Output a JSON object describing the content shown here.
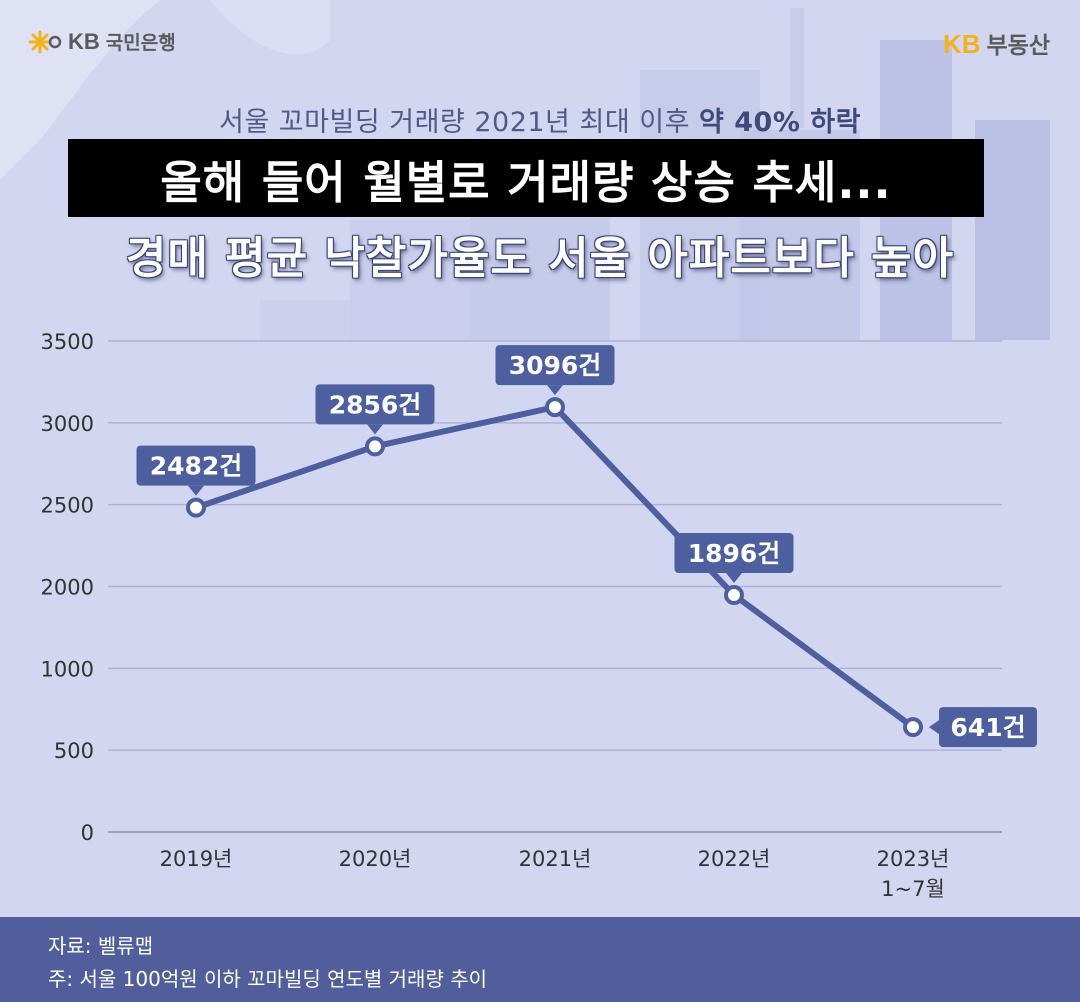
{
  "brand": {
    "left_mark": "KB",
    "left_name": "국민은행",
    "right_mark": "KB",
    "right_name": "부동산"
  },
  "header": {
    "subtitle_plain": "서울 꼬마빌딩 거래량 2021년 최대 이후 ",
    "subtitle_emph": "약 40% 하락",
    "title_line1": "올해 들어 월별로 거래량 상승 추세...",
    "title_line2_plain": "경매 평균 낙찰가율도 ",
    "title_line2_emph": "서울 아파트보다 높아"
  },
  "colors": {
    "line": "#4e5f9f",
    "label_bg": "#4e5f9f",
    "footer_bg": "#525e9c",
    "background": "#d3d6f0",
    "accent": "#f3b21b"
  },
  "chart_data": {
    "type": "line",
    "categories": [
      "2019년",
      "2020년",
      "2021년",
      "2022년",
      "2023년\n1~7월"
    ],
    "values": [
      2482,
      2856,
      3096,
      1896,
      641
    ],
    "data_labels": [
      "2482건",
      "2856건",
      "3096건",
      "1896건",
      "641건"
    ],
    "y_ticks": [
      0,
      500,
      1000,
      2000,
      2500,
      3000,
      3500
    ],
    "y_tick_labels": [
      "0",
      "500",
      "1000",
      "2000",
      "2500",
      "3000",
      "3500"
    ],
    "grid": true
  },
  "footer": {
    "source": "자료: 벨류맵",
    "note": "주: 서울 100억원 이하 꼬마빌딩 연도별 거래량 추이"
  }
}
